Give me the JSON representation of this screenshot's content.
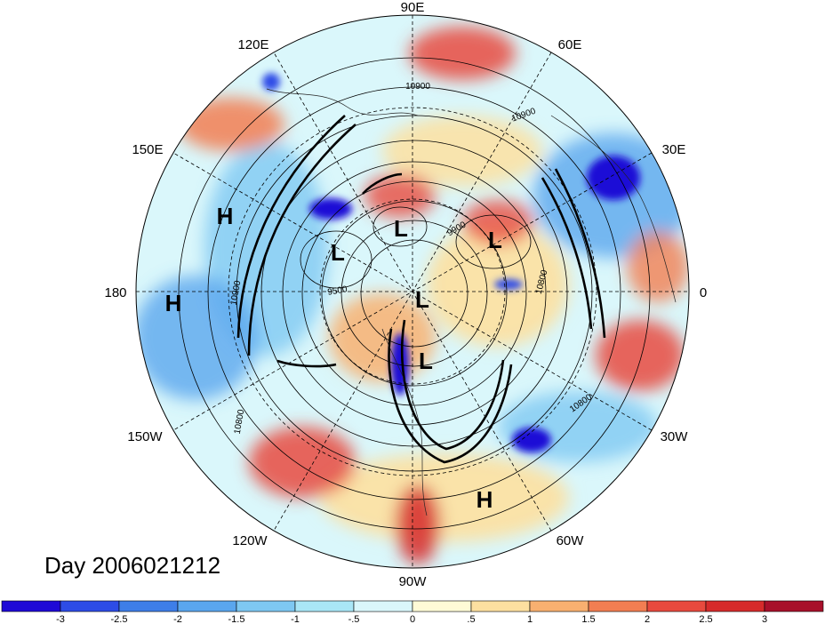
{
  "date_label": "Day 2006021212",
  "longitude_labels": [
    "90E",
    "60E",
    "30E",
    "0",
    "30W",
    "60W",
    "90W",
    "120W",
    "150W",
    "180",
    "150E",
    "120E"
  ],
  "pressure_centers": [
    {
      "letter": "H"
    },
    {
      "letter": "H"
    },
    {
      "letter": "L"
    },
    {
      "letter": "L"
    },
    {
      "letter": "L"
    },
    {
      "letter": "L"
    },
    {
      "letter": "L"
    },
    {
      "letter": "H"
    }
  ],
  "contour_labels": [
    "10900",
    "10900",
    "10900",
    "9900",
    "9500",
    "10800",
    "10800",
    "10800"
  ],
  "colorbar": {
    "ticks": [
      "-3",
      "-2.5",
      "-2",
      "-1.5",
      "-1",
      "-.5",
      "0",
      ".5",
      "1",
      "1.5",
      "2",
      "2.5",
      "3"
    ],
    "colors": [
      "#1f0ad6",
      "#2d4ce6",
      "#3e7ee8",
      "#5aa6ee",
      "#7ec8f2",
      "#a9e6f6",
      "#daf7fb",
      "#fffbd6",
      "#fde0a0",
      "#f8b070",
      "#f27e52",
      "#e84a3e",
      "#d62b2b",
      "#a8102a"
    ]
  }
}
